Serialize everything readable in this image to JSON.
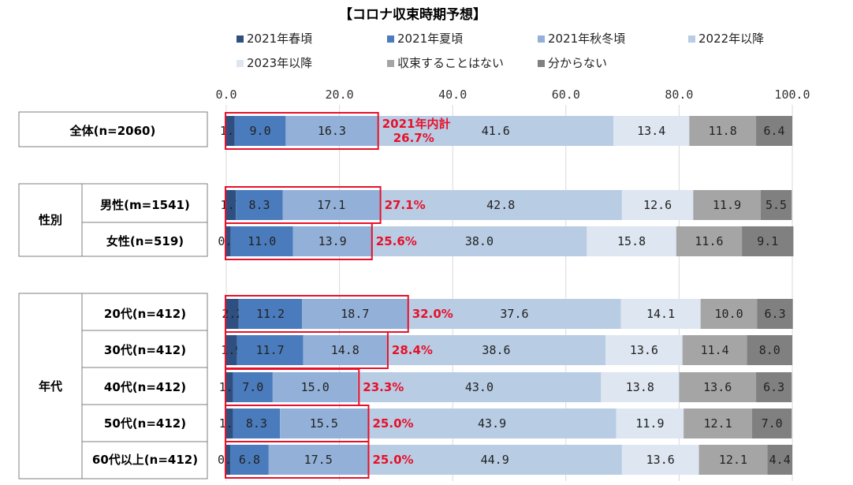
{
  "chart_data": {
    "type": "bar",
    "orientation": "horizontal",
    "stacked": true,
    "title": "【コロナ収束時期予想】",
    "xlim": [
      0,
      100
    ],
    "x_ticks": [
      "0.0",
      "20.0",
      "40.0",
      "60.0",
      "80.0",
      "100.0"
    ],
    "grid": true,
    "legend_position": "top",
    "series": [
      {
        "name": "2021年春頃",
        "color": "#2e4f80"
      },
      {
        "name": "2021年夏頃",
        "color": "#4a7cbd"
      },
      {
        "name": "2021年秋冬頃",
        "color": "#93b1d8"
      },
      {
        "name": "2022年以降",
        "color": "#b8cce4"
      },
      {
        "name": "2023年以降",
        "color": "#dde6f1"
      },
      {
        "name": "収束することはない",
        "color": "#a5a5a5"
      },
      {
        "name": "分からない",
        "color": "#808080"
      }
    ],
    "rows": [
      {
        "group": "",
        "label": "全体(n=2060)",
        "values": [
          1.5,
          9.0,
          16.3,
          41.6,
          13.4,
          11.8,
          6.4
        ],
        "total_label": "2021年内計\n26.7%",
        "total_value": 26.7
      },
      {
        "group": "性別",
        "label": "男性(m=1541)",
        "values": [
          1.7,
          8.3,
          17.1,
          42.8,
          12.6,
          11.9,
          5.5
        ],
        "total_label": "27.1%",
        "total_value": 27.1
      },
      {
        "group": "性別",
        "label": "女性(n=519)",
        "values": [
          0.8,
          11.0,
          13.9,
          38.0,
          15.8,
          11.6,
          9.1
        ],
        "total_label": "25.6%",
        "total_value": 25.6
      },
      {
        "group": "年代",
        "label": "20代(n=412)",
        "values": [
          2.2,
          11.2,
          18.7,
          37.6,
          14.1,
          10.0,
          6.3
        ],
        "total_label": "32.0%",
        "total_value": 32.0
      },
      {
        "group": "年代",
        "label": "30代(n=412)",
        "values": [
          1.9,
          11.7,
          14.8,
          38.6,
          13.6,
          11.4,
          8.0
        ],
        "total_label": "28.4%",
        "total_value": 28.4
      },
      {
        "group": "年代",
        "label": "40代(n=412)",
        "values": [
          1.2,
          7.0,
          15.0,
          43.0,
          13.8,
          13.6,
          6.3
        ],
        "total_label": "23.3%",
        "total_value": 23.3
      },
      {
        "group": "年代",
        "label": "50代(n=412)",
        "values": [
          1.2,
          8.3,
          15.5,
          43.9,
          11.9,
          12.1,
          7.0
        ],
        "total_label": "25.0%",
        "total_value": 25.0
      },
      {
        "group": "年代",
        "label": "60代以上(n=412)",
        "values": [
          0.7,
          6.8,
          17.5,
          44.9,
          13.6,
          12.1,
          4.4
        ],
        "total_label": "25.0%",
        "total_value": 25.0
      }
    ],
    "groups": [
      "性別",
      "年代"
    ]
  }
}
